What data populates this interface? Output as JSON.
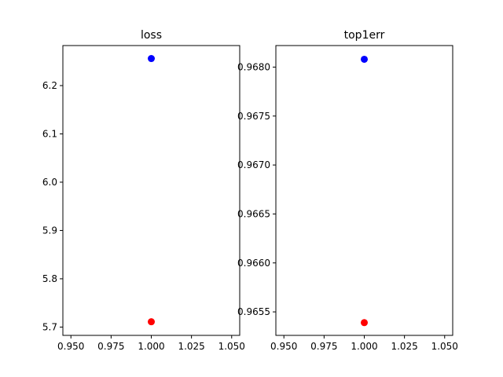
{
  "chart_data": [
    {
      "type": "scatter",
      "title": "loss",
      "xlabel": "",
      "ylabel": "",
      "xlim": [
        0.945,
        1.055
      ],
      "ylim": [
        5.6828,
        6.2829
      ],
      "xticks": [
        "0.950",
        "0.975",
        "1.000",
        "1.025",
        "1.050"
      ],
      "xtick_values": [
        0.95,
        0.975,
        1.0,
        1.025,
        1.05
      ],
      "yticks": [
        "5.7",
        "5.8",
        "5.9",
        "6.0",
        "6.1",
        "6.2"
      ],
      "ytick_values": [
        5.7,
        5.8,
        5.9,
        6.0,
        6.1,
        6.2
      ],
      "grid": false,
      "series": [
        {
          "x": [
            1.0
          ],
          "y": [
            6.256
          ],
          "color": "#0000ff"
        },
        {
          "x": [
            1.0
          ],
          "y": [
            5.711
          ],
          "color": "#ff0000"
        }
      ]
    },
    {
      "type": "scatter",
      "title": "top1err",
      "xlabel": "",
      "ylabel": "",
      "xlim": [
        0.945,
        1.055
      ],
      "ylim": [
        0.96526,
        0.96822
      ],
      "xticks": [
        "0.950",
        "0.975",
        "1.000",
        "1.025",
        "1.050"
      ],
      "xtick_values": [
        0.95,
        0.975,
        1.0,
        1.025,
        1.05
      ],
      "yticks": [
        "0.9655",
        "0.9660",
        "0.9665",
        "0.9670",
        "0.9675",
        "0.9680"
      ],
      "ytick_values": [
        0.9655,
        0.966,
        0.9665,
        0.967,
        0.9675,
        0.968
      ],
      "grid": false,
      "series": [
        {
          "x": [
            1.0
          ],
          "y": [
            0.96808
          ],
          "color": "#0000ff"
        },
        {
          "x": [
            1.0
          ],
          "y": [
            0.96539
          ],
          "color": "#ff0000"
        }
      ]
    }
  ]
}
